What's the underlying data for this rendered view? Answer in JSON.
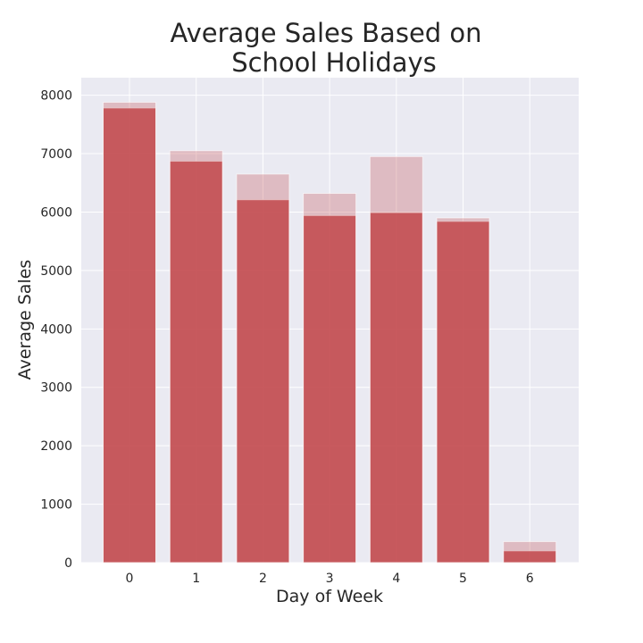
{
  "chart_data": {
    "type": "bar",
    "title_lines": [
      "Average Sales Based on",
      "School Holidays"
    ],
    "xlabel": "Day of Week",
    "ylabel": "Average Sales",
    "categories": [
      "0",
      "1",
      "2",
      "3",
      "4",
      "5",
      "6"
    ],
    "yticks": [
      "0",
      "1000",
      "2000",
      "3000",
      "4000",
      "5000",
      "6000",
      "7000",
      "8000"
    ],
    "ylim": [
      0,
      8300
    ],
    "grid": true,
    "legend": "none",
    "series": [
      {
        "values": [
          7780,
          6870,
          6210,
          5940,
          5990,
          5840,
          200
        ],
        "color": "#c44e52",
        "opacity": 0.9
      },
      {
        "values": [
          7880,
          7050,
          6650,
          6320,
          6950,
          5900,
          360
        ],
        "color": "#c44e52",
        "opacity": 0.3
      }
    ]
  }
}
